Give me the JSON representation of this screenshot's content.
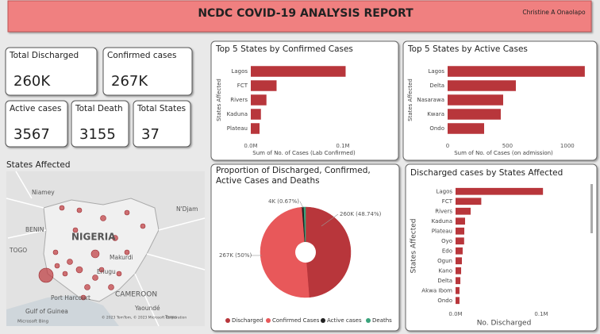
{
  "header": {
    "title": "NCDC COVID-19 ANALYSIS REPORT",
    "author": "Christine A Onaolapo"
  },
  "cards": [
    {
      "label": "Total Discharged",
      "value": "260K"
    },
    {
      "label": "Confirmed cases",
      "value": "267K"
    },
    {
      "label": "Active cases",
      "value": "3567"
    },
    {
      "label": "Total Death",
      "value": "3155"
    },
    {
      "label": "Total States",
      "value": "37"
    }
  ],
  "map": {
    "title": "States Affected",
    "labels": [
      "Niamey",
      "BENIN",
      "TOGO",
      "NIGERIA",
      "Makurdi",
      "Enugu",
      "Port Harcourt",
      "CAMEROON",
      "Yaoundé",
      "N'Djam",
      "Gulf of Guinea",
      "Microsoft Bing",
      "© 2023 TomTom, © 2023 Microsoft Corporation",
      "Terms"
    ]
  },
  "chart_data": [
    {
      "type": "hbar",
      "title": "Top 5 States by Confirmed Cases",
      "x_label": "Sum of No. of Cases (Lab Confirmed)",
      "y_label": "States Affected",
      "categories": [
        "Lagos",
        "FCT",
        "Rivers",
        "Kaduna",
        "Plateau"
      ],
      "values": [
        103000,
        28000,
        17000,
        11000,
        9500
      ],
      "color": "#b8363b",
      "xlim": [
        0,
        150000
      ],
      "xticks": [
        {
          "value": 0,
          "label": "0.0M"
        },
        {
          "value": 100000,
          "label": "0.1M"
        }
      ],
      "grid": false
    },
    {
      "type": "hbar",
      "title": "Top 5 States by Active Cases",
      "x_label": "Sum of No. of Cases (on admission)",
      "y_label": "States Affected",
      "categories": [
        "Lagos",
        "Delta",
        "Nasarawa",
        "Kwara",
        "Ondo"
      ],
      "values": [
        1146,
        570,
        464,
        444,
        305
      ],
      "color": "#b8363b",
      "xlim": [
        0,
        1200
      ],
      "xticks": [
        0,
        500,
        1000
      ],
      "grid": false
    },
    {
      "type": "pie",
      "title": "Proportion of Discharged, Confirmed, Active Cases and Deaths",
      "categories": [
        "Discharged",
        "Confirmed Cases",
        "Active cases",
        "Deaths"
      ],
      "values": [
        48.74,
        50,
        0.67,
        0.59
      ],
      "value_labels": [
        "260K (48.74%)",
        "267K (50%)",
        "4K (0.67%)",
        null
      ],
      "colors": [
        "#b8363b",
        "#e8585a",
        "#222222",
        "#3aa37c"
      ]
    },
    {
      "type": "hbar",
      "title": "Discharged cases by States Affected",
      "x_label": "No. Discharged",
      "y_label": "States Affected",
      "categories": [
        "Lagos",
        "FCT",
        "Rivers",
        "Kaduna",
        "Plateau",
        "Oyo",
        "Edo",
        "Ogun",
        "Kano",
        "Delta",
        "Akwa Ibom",
        "Ondo"
      ],
      "values": [
        102000,
        30000,
        17600,
        11100,
        10200,
        10000,
        8300,
        7400,
        6500,
        5600,
        4600,
        4600
      ],
      "color": "#b8363b",
      "xlim": [
        0,
        150000
      ],
      "xticks": [
        {
          "value": 0,
          "label": "0.0M"
        },
        {
          "value": 100000,
          "label": "0.1M"
        }
      ],
      "grid": false
    }
  ]
}
